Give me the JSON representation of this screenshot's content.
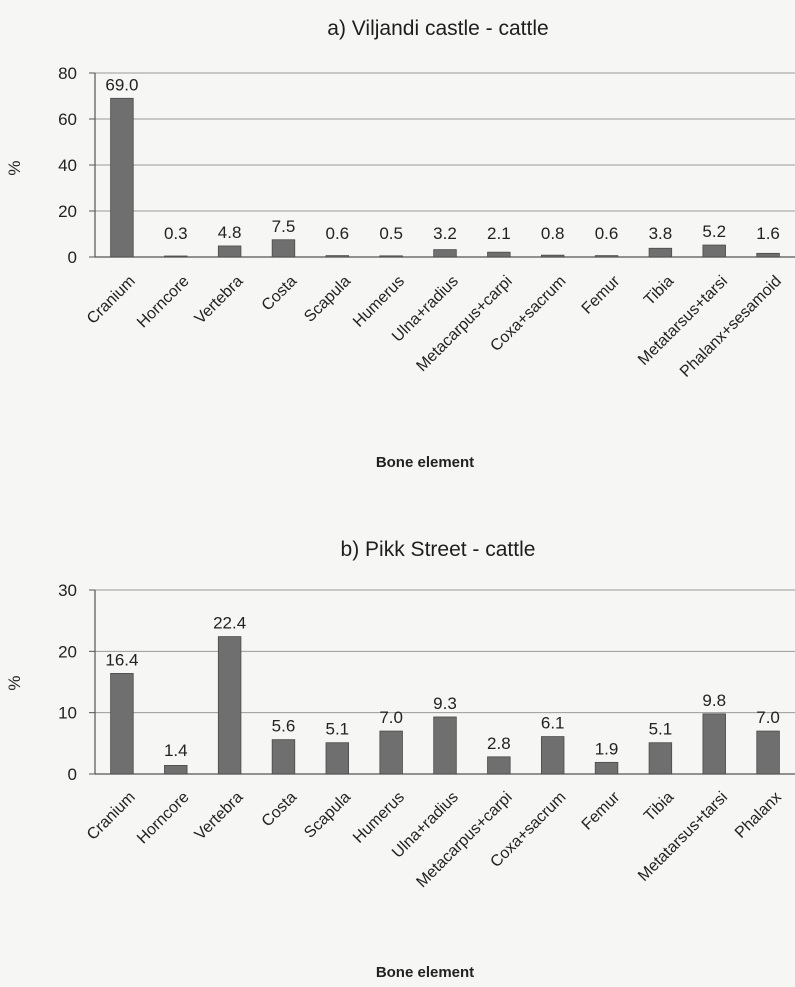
{
  "chart_data": [
    {
      "type": "bar",
      "title": "a) Viljandi castle - cattle",
      "xlabel": "Bone element",
      "ylabel": "%",
      "ylim": [
        0,
        80
      ],
      "yticks": [
        0,
        20,
        40,
        60,
        80
      ],
      "grid": "horizontal",
      "categories": [
        "Cranium",
        "Horncore",
        "Vertebra",
        "Costa",
        "Scapula",
        "Humerus",
        "Ulna+radius",
        "Metacarpus+carpi",
        "Coxa+sacrum",
        "Femur",
        "Tibia",
        "Metatarsus+tarsi",
        "Phalanx+sesamoid"
      ],
      "values": [
        69.0,
        0.3,
        4.8,
        7.5,
        0.6,
        0.5,
        3.2,
        2.1,
        0.8,
        0.6,
        3.8,
        5.2,
        1.6
      ],
      "data_labels": [
        "69.0",
        "0.3",
        "4.8",
        "7.5",
        "0.6",
        "0.5",
        "3.2",
        "2.1",
        "0.8",
        "0.6",
        "3.8",
        "5.2",
        "1.6"
      ],
      "bar_color": "#6f6f6f"
    },
    {
      "type": "bar",
      "title": "b) Pikk Street - cattle",
      "xlabel": "Bone element",
      "ylabel": "%",
      "ylim": [
        0,
        30
      ],
      "yticks": [
        0,
        10,
        20,
        30
      ],
      "grid": "horizontal",
      "categories": [
        "Cranium",
        "Horncore",
        "Vertebra",
        "Costa",
        "Scapula",
        "Humerus",
        "Ulna+radius",
        "Metacarpus+carpi",
        "Coxa+sacrum",
        "Femur",
        "Tibia",
        "Metatarsus+tarsi",
        "Phalanx"
      ],
      "values": [
        16.4,
        1.4,
        22.4,
        5.6,
        5.1,
        7.0,
        9.3,
        2.8,
        6.1,
        1.9,
        5.1,
        9.8,
        7.0
      ],
      "data_labels": [
        "16.4",
        "1.4",
        "22.4",
        "5.6",
        "5.1",
        "7.0",
        "9.3",
        "2.8",
        "6.1",
        "1.9",
        "5.1",
        "9.8",
        "7.0"
      ],
      "bar_color": "#6f6f6f"
    }
  ]
}
